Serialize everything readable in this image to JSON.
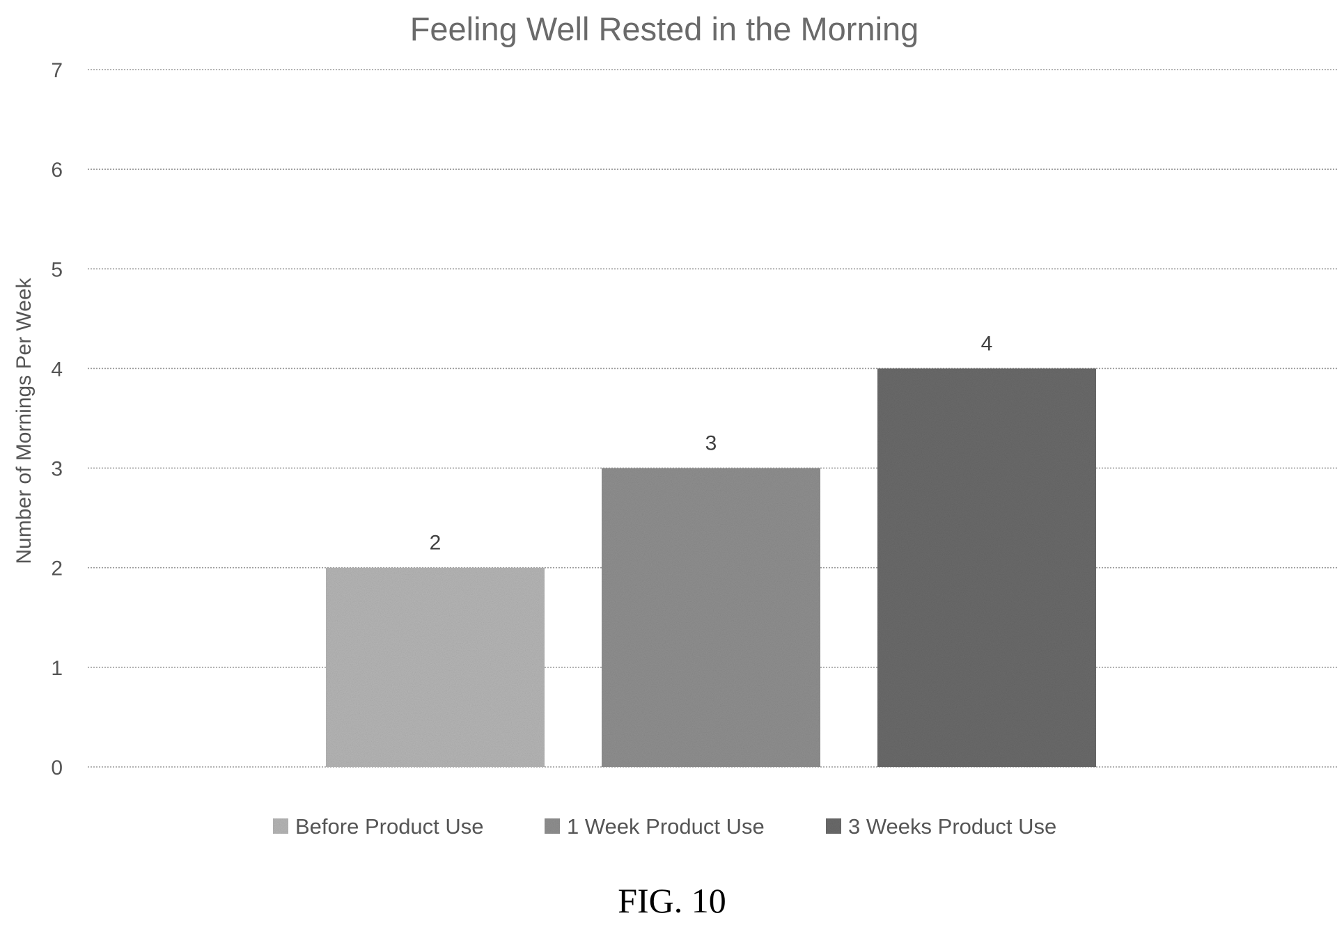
{
  "chart_data": {
    "type": "bar",
    "title": "Feeling Well Rested in the Morning",
    "xlabel": "",
    "ylabel": "Number of Mornings Per Week",
    "ylim": [
      0,
      7
    ],
    "y_ticks": [
      0,
      1,
      2,
      3,
      4,
      5,
      6,
      7
    ],
    "grid": true,
    "legend_position": "bottom",
    "series": [
      {
        "name": "Before Product Use",
        "values": [
          2
        ],
        "color": "#b5b5b5"
      },
      {
        "name": "1 Week Product Use",
        "values": [
          3
        ],
        "color": "#8f8f8f"
      },
      {
        "name": "3 Weeks Product Use",
        "values": [
          4
        ],
        "color": "#6a6a6a"
      }
    ],
    "data_labels": [
      "2",
      "3",
      "4"
    ]
  },
  "figure": {
    "caption": "FIG. 10"
  }
}
